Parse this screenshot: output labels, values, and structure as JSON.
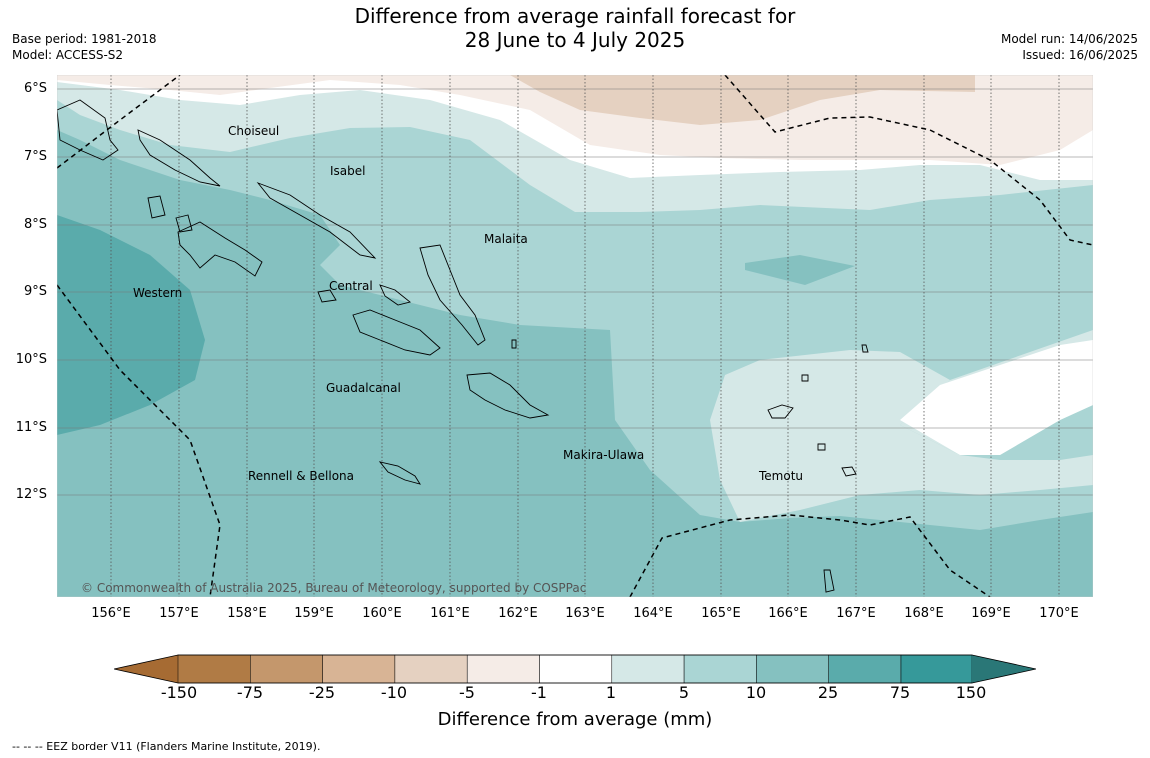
{
  "title_line1": "Difference from average rainfall forecast for",
  "title_line2": "28 June to 4 July 2025",
  "base_period": "Base period: 1981-2018",
  "model": "Model: ACCESS-S2",
  "model_run": "Model run: 14/06/2025",
  "issued": "Issued: 16/06/2025",
  "copyright": "© Commonwealth of Australia 2025, Bureau of Meteorology, supported by COSPPac",
  "lat_labels": [
    "6°S",
    "7°S",
    "8°S",
    "9°S",
    "10°S",
    "11°S",
    "12°S"
  ],
  "lon_labels": [
    "156°E",
    "157°E",
    "158°E",
    "159°E",
    "160°E",
    "161°E",
    "162°E",
    "163°E",
    "164°E",
    "165°E",
    "166°E",
    "167°E",
    "168°E",
    "169°E",
    "170°E"
  ],
  "regions": {
    "choiseul": "Choiseul",
    "isabel": "Isabel",
    "malaita": "Malaita",
    "western": "Western",
    "central": "Central",
    "guadalcanal": "Guadalcanal",
    "makira": "Makira-Ulawa",
    "rennell": "Rennell & Bellona",
    "temotu": "Temotu"
  },
  "colorbar": {
    "title": "Difference from average (mm)",
    "labels": [
      "-150",
      "-75",
      "-25",
      "-10",
      "-5",
      "-1",
      "1",
      "5",
      "10",
      "25",
      "75",
      "150"
    ],
    "colors": [
      "#a66b33",
      "#b07b45",
      "#c4976c",
      "#d8b495",
      "#e5d1c1",
      "#f5ece7",
      "#ffffff",
      "#d5e8e7",
      "#aad5d4",
      "#85c1c0",
      "#5aabab",
      "#36999a",
      "#2a7777"
    ]
  },
  "footer": "--  --  -- EEZ border V11 (Flanders Marine Institute, 2019)."
}
